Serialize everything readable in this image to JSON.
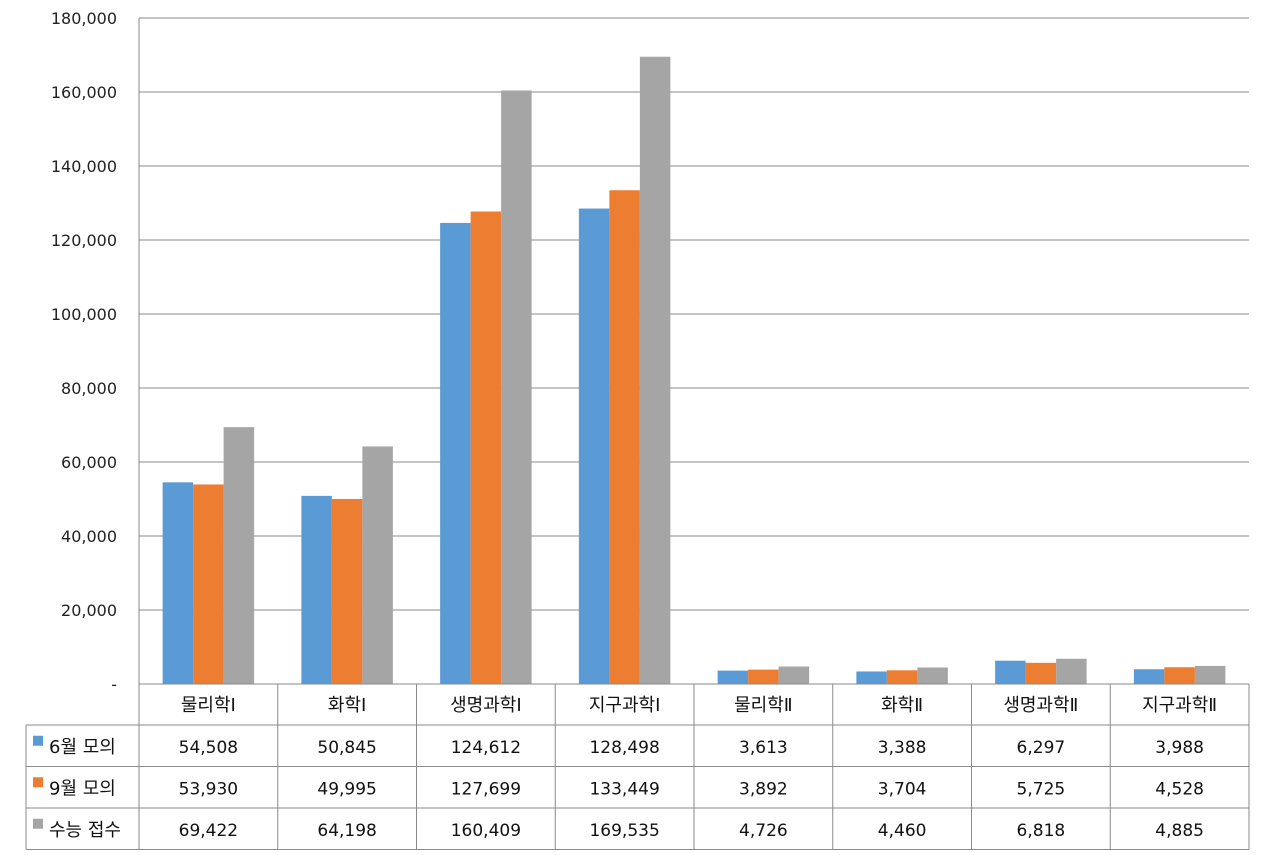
{
  "chart_data": {
    "type": "bar",
    "title": "",
    "xlabel": "",
    "ylabel": "",
    "ylim": [
      0,
      180000
    ],
    "y_ticks": [
      "-",
      "20,000",
      "40,000",
      "60,000",
      "80,000",
      "100,000",
      "120,000",
      "140,000",
      "160,000",
      "180,000"
    ],
    "grid": true,
    "legend": "data-table-left",
    "categories": [
      "물리학Ⅰ",
      "화학Ⅰ",
      "생명과학Ⅰ",
      "지구과학Ⅰ",
      "물리학Ⅱ",
      "화학Ⅱ",
      "생명과학Ⅱ",
      "지구과학Ⅱ"
    ],
    "series": [
      {
        "name": "6월 모의",
        "color": "#5B9BD5",
        "values": [
          54508,
          50845,
          124612,
          128498,
          3613,
          3388,
          6297,
          3988
        ],
        "labels": [
          "54,508",
          "50,845",
          "124,612",
          "128,498",
          "3,613",
          "3,388",
          "6,297",
          "3,988"
        ]
      },
      {
        "name": "9월 모의",
        "color": "#ED7D31",
        "values": [
          53930,
          49995,
          127699,
          133449,
          3892,
          3704,
          5725,
          4528
        ],
        "labels": [
          "53,930",
          "49,995",
          "127,699",
          "133,449",
          "3,892",
          "3,704",
          "5,725",
          "4,528"
        ]
      },
      {
        "name": "수능 접수",
        "color": "#A5A5A5",
        "values": [
          69422,
          64198,
          160409,
          169535,
          4726,
          4460,
          6818,
          4885
        ],
        "labels": [
          "69,422",
          "64,198",
          "160,409",
          "169,535",
          "4,726",
          "4,460",
          "6,818",
          "4,885"
        ]
      }
    ]
  }
}
